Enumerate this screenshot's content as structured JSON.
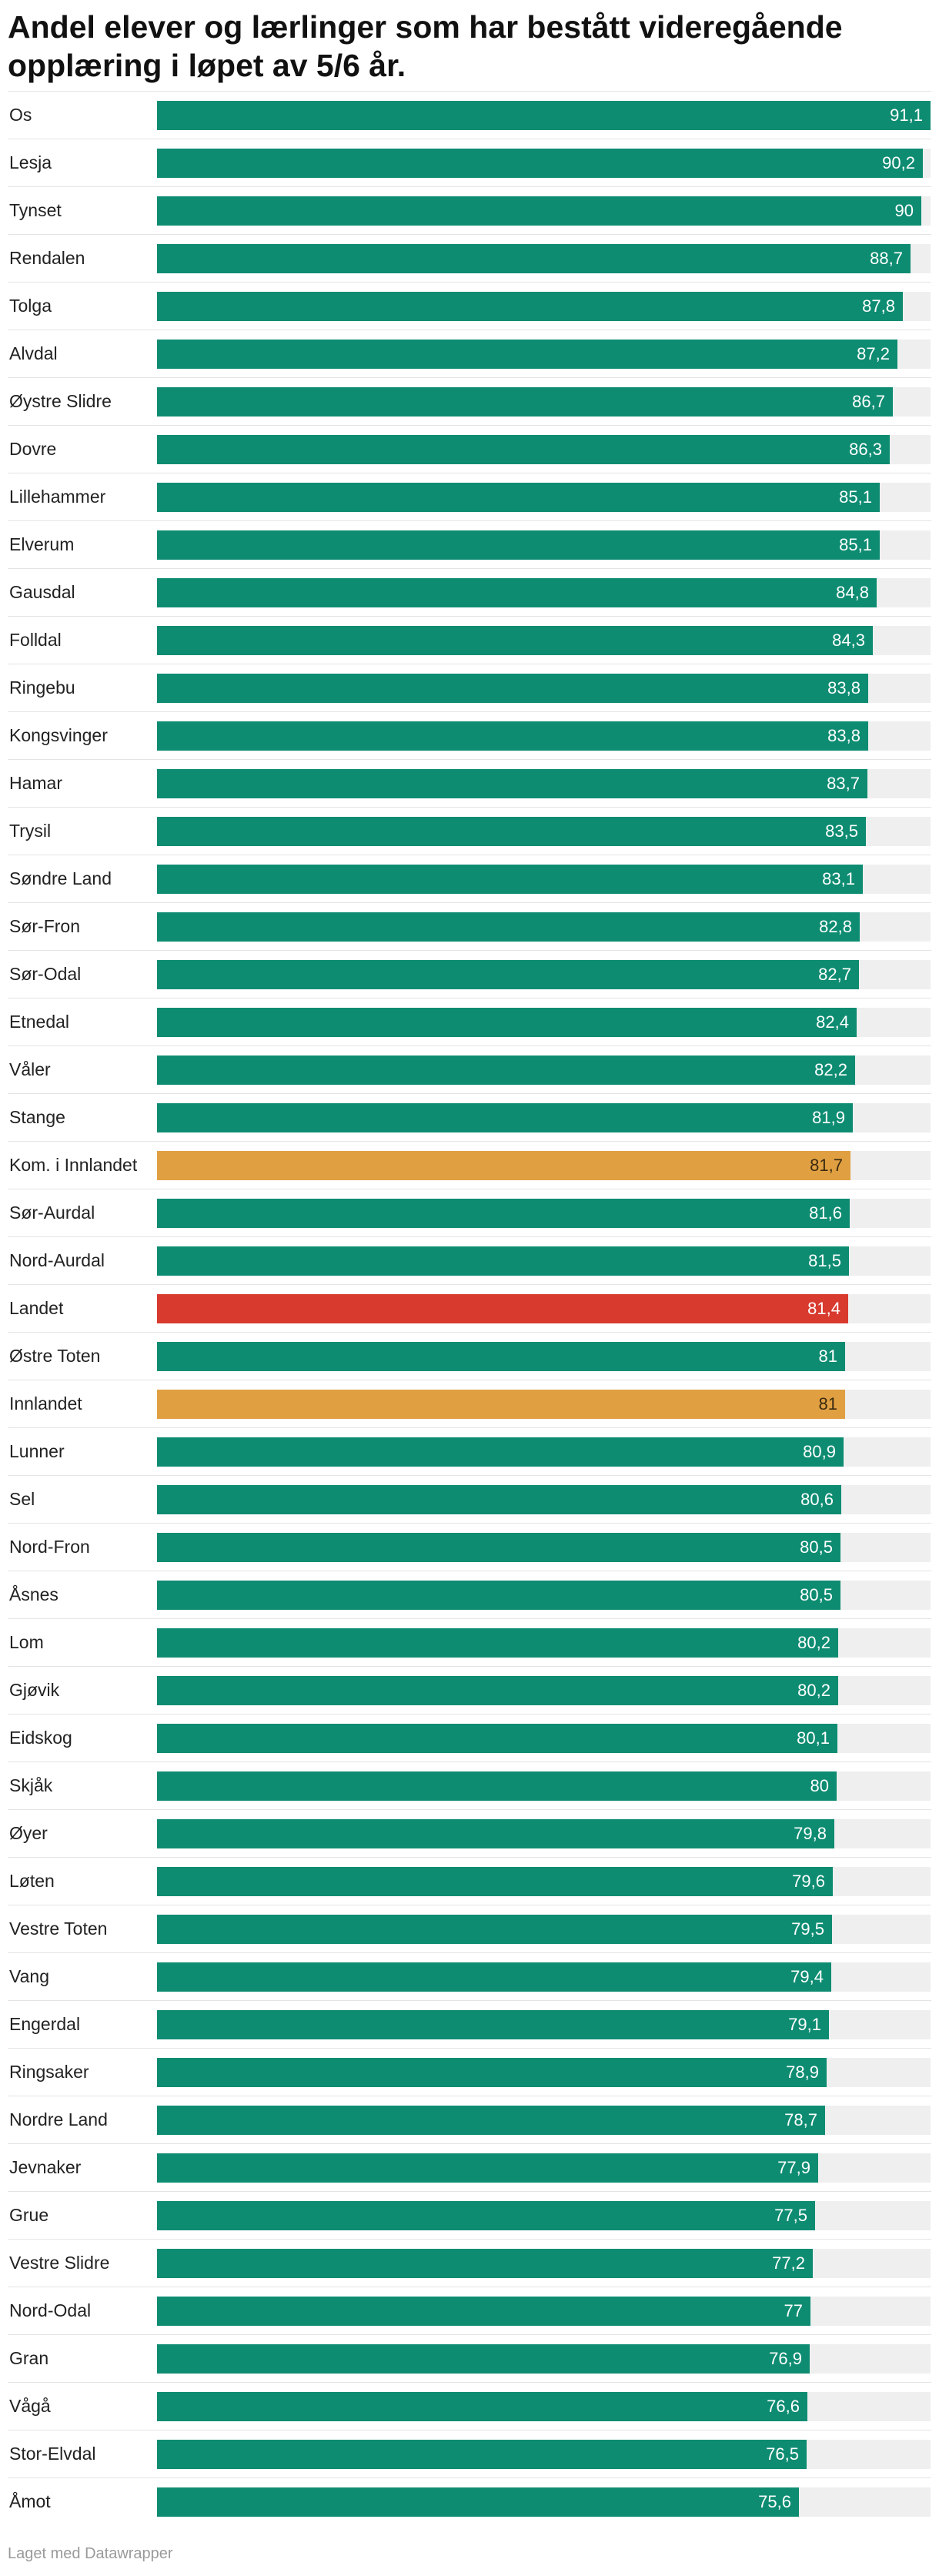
{
  "title": "Andel elever og lærlinger som har bestått videregående opplæring i løpet av 5/6 år.",
  "footer": "Laget med Datawrapper",
  "colors": {
    "default": "#0e8c72",
    "innlandet": "#e0a042",
    "landet": "#d83a2e",
    "track": "#efefef"
  },
  "chart_data": {
    "type": "bar",
    "orientation": "horizontal",
    "xlim": [
      0,
      91.1
    ],
    "categories": [
      "Os",
      "Lesja",
      "Tynset",
      "Rendalen",
      "Tolga",
      "Alvdal",
      "Øystre Slidre",
      "Dovre",
      "Lillehammer",
      "Elverum",
      "Gausdal",
      "Folldal",
      "Ringebu",
      "Kongsvinger",
      "Hamar",
      "Trysil",
      "Søndre Land",
      "Sør-Fron",
      "Sør-Odal",
      "Etnedal",
      "Våler",
      "Stange",
      "Kom. i Innlandet",
      "Sør-Aurdal",
      "Nord-Aurdal",
      "Landet",
      "Østre Toten",
      "Innlandet",
      "Lunner",
      "Sel",
      "Nord-Fron",
      "Åsnes",
      "Lom",
      "Gjøvik",
      "Eidskog",
      "Skjåk",
      "Øyer",
      "Løten",
      "Vestre Toten",
      "Vang",
      "Engerdal",
      "Ringsaker",
      "Nordre Land",
      "Jevnaker",
      "Grue",
      "Vestre Slidre",
      "Nord-Odal",
      "Gran",
      "Vågå",
      "Stor-Elvdal",
      "Åmot"
    ],
    "values": [
      91.1,
      90.2,
      90,
      88.7,
      87.8,
      87.2,
      86.7,
      86.3,
      85.1,
      85.1,
      84.8,
      84.3,
      83.8,
      83.8,
      83.7,
      83.5,
      83.1,
      82.8,
      82.7,
      82.4,
      82.2,
      81.9,
      81.7,
      81.6,
      81.5,
      81.4,
      81,
      81,
      80.9,
      80.6,
      80.5,
      80.5,
      80.2,
      80.2,
      80.1,
      80,
      79.8,
      79.6,
      79.5,
      79.4,
      79.1,
      78.9,
      78.7,
      77.9,
      77.5,
      77.2,
      77,
      76.9,
      76.6,
      76.5,
      75.6
    ],
    "value_labels": [
      "91,1",
      "90,2",
      "90",
      "88,7",
      "87,8",
      "87,2",
      "86,7",
      "86,3",
      "85,1",
      "85,1",
      "84,8",
      "84,3",
      "83,8",
      "83,8",
      "83,7",
      "83,5",
      "83,1",
      "82,8",
      "82,7",
      "82,4",
      "82,2",
      "81,9",
      "81,7",
      "81,6",
      "81,5",
      "81,4",
      "81",
      "81",
      "80,9",
      "80,6",
      "80,5",
      "80,5",
      "80,2",
      "80,2",
      "80,1",
      "80",
      "79,8",
      "79,6",
      "79,5",
      "79,4",
      "79,1",
      "78,9",
      "78,7",
      "77,9",
      "77,5",
      "77,2",
      "77",
      "76,9",
      "76,6",
      "76,5",
      "75,6"
    ],
    "highlight": {
      "Kom. i Innlandet": "innlandet",
      "Innlandet": "innlandet",
      "Landet": "landet"
    }
  }
}
